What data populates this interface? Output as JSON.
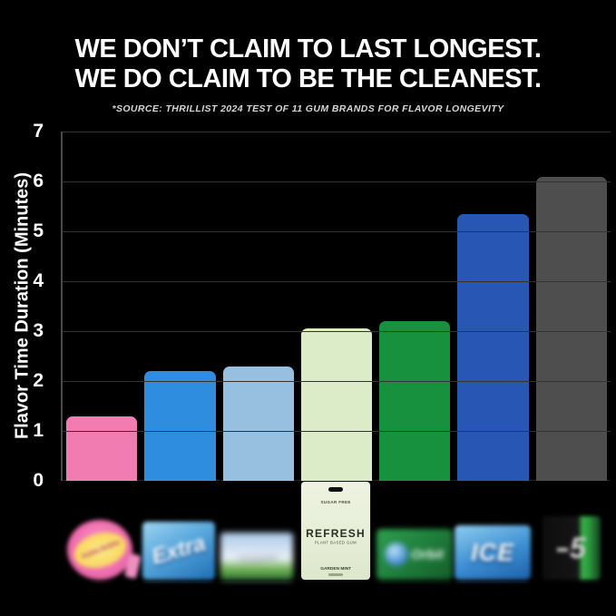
{
  "header": {
    "title_line1": "WE DON’T CLAIM TO LAST LONGEST.",
    "title_line2": "WE DO CLAIM TO BE THE CLEANEST.",
    "source_note": "*SOURCE: THRILLIST 2024 TEST OF 11 GUM BRANDS FOR FLAVOR LONGEVITY"
  },
  "chart_data": {
    "type": "bar",
    "title": "",
    "xlabel": "",
    "ylabel": "Flavor Time Duration (Minutes)",
    "ylim": [
      0,
      7
    ],
    "yticks": [
      0,
      1,
      2,
      3,
      4,
      5,
      6,
      7
    ],
    "grid": true,
    "legend": "none",
    "categories": [
      "Hubba Bubba",
      "Extra",
      "Trident",
      "Refresh",
      "Orbit",
      "Ice",
      "5 Gum"
    ],
    "values": [
      1.3,
      2.2,
      2.3,
      3.05,
      3.2,
      5.35,
      6.1
    ],
    "bar_colors": [
      "#f07cb2",
      "#2f8de0",
      "#97c0e0",
      "#dcebc8",
      "#18913e",
      "#2756b4",
      "#4e4e4e"
    ]
  },
  "products": [
    {
      "label": "Hubba Bubba"
    },
    {
      "label": "Extra"
    },
    {
      "label": "Trident"
    },
    {
      "label": "Refresh"
    },
    {
      "label": "Orbit"
    },
    {
      "label": "ICE"
    },
    {
      "label": "5"
    }
  ],
  "refresh_pack": {
    "top_label": "SUGAR FREE",
    "brand": "REFRESH",
    "subtitle": "PLANT BASED GUM",
    "flavor": "GARDEN MINT"
  },
  "colors": {
    "background": "#000000",
    "title_text": "#ffffff",
    "subtitle_text": "#d6d6d6",
    "gridline": "#333333",
    "axis_spine": "#4a4a4a",
    "tick_text": "#ffffff"
  }
}
